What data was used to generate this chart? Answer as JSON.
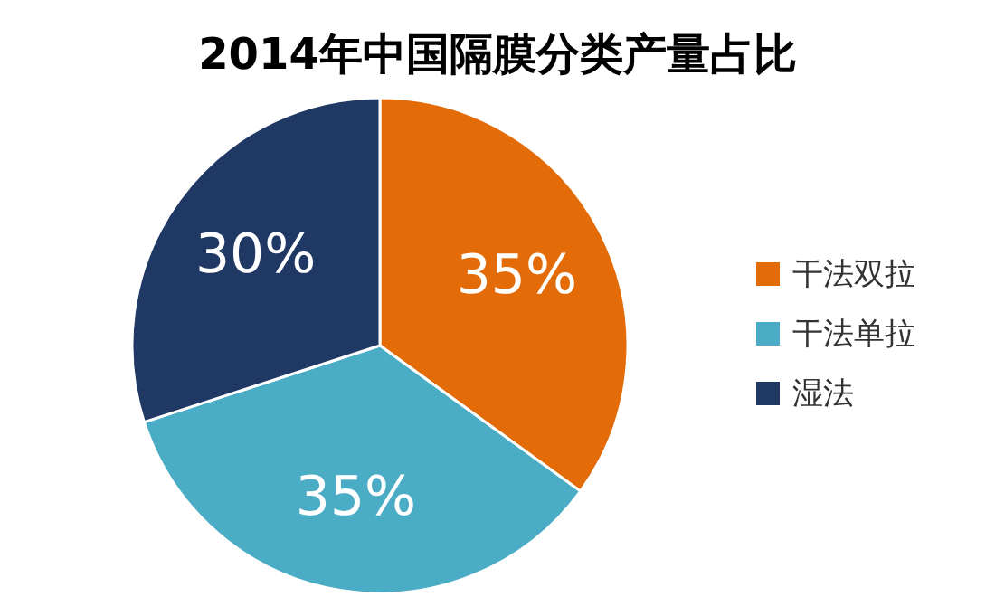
{
  "chart_data": {
    "type": "pie",
    "title": "2014年中国隔膜分类产量占比",
    "categories": [
      "干法双拉",
      "干法单拉",
      "湿法"
    ],
    "values": [
      35,
      35,
      30
    ],
    "colors": [
      "#e36c09",
      "#4bacc6",
      "#1f3864"
    ],
    "value_labels": [
      "35%",
      "35%",
      "30%"
    ],
    "legend": "right"
  }
}
